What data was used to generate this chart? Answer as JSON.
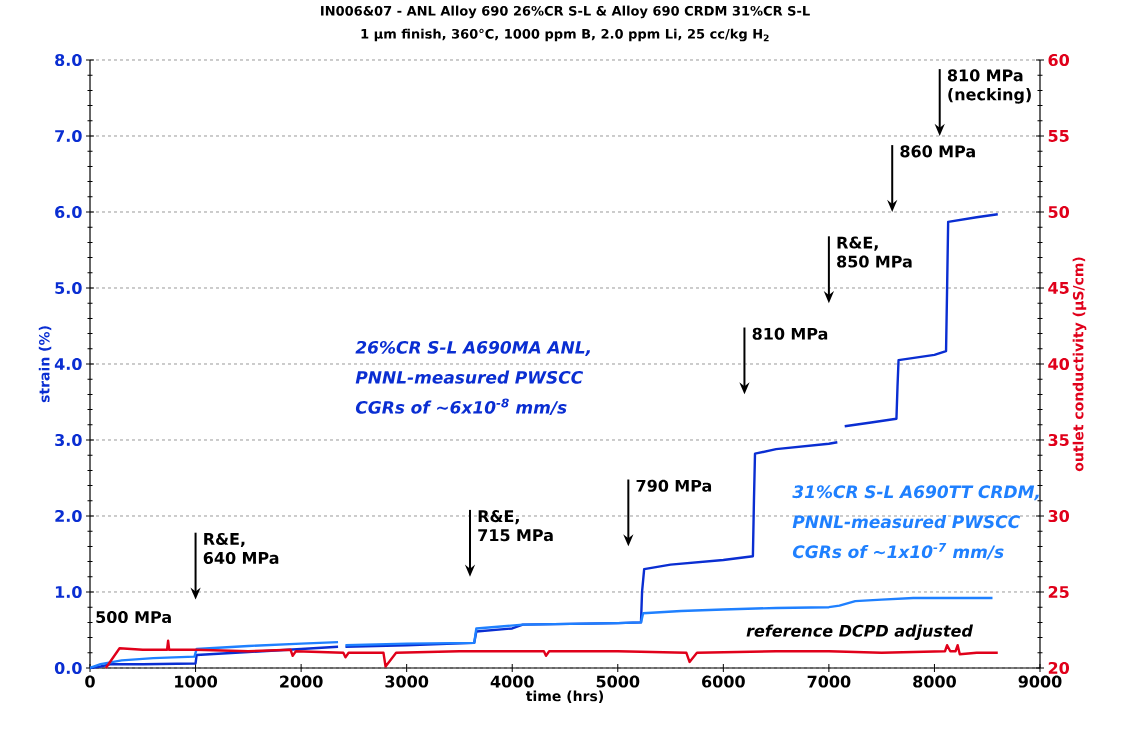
{
  "chart_data": {
    "type": "line",
    "title": "IN006&07 - ANL Alloy 690 26%CR S-L & Alloy 690 CRDM 31%CR S-L",
    "subtitle": "1 µm finish, 360°C, 1000 ppm B, 2.0 ppm Li, 25 cc/kg H$_{2}$",
    "xlabel": "time (hrs)",
    "ylabel": "strain (%)",
    "y2label": "outlet conductivity (µS/cm)",
    "xlim": [
      0,
      9000
    ],
    "xticks": [
      0,
      1000,
      2000,
      3000,
      4000,
      5000,
      6000,
      7000,
      8000,
      9000
    ],
    "ylim": [
      0,
      8
    ],
    "yticks": [
      {
        "value": 0,
        "label": "0.0"
      },
      {
        "value": 1,
        "label": "1.0"
      },
      {
        "value": 2,
        "label": "2.0"
      },
      {
        "value": 3,
        "label": "3.0"
      },
      {
        "value": 4,
        "label": "4.0"
      },
      {
        "value": 5,
        "label": "5.0"
      },
      {
        "value": 6,
        "label": "6.0"
      },
      {
        "value": 7,
        "label": "7.0"
      },
      {
        "value": 8,
        "label": "8.0"
      }
    ],
    "y2lim": [
      20,
      60
    ],
    "y2ticks": [
      20,
      25,
      30,
      35,
      40,
      45,
      50,
      55,
      60
    ],
    "grid": "y",
    "series": [
      {
        "name": "26%CR S-L A690MA ANL, PNNL-measured PWSCC CGRs of ~6x10$^{-8}$ mm/s",
        "color": "#0a2ed2",
        "x": [
          0,
          100,
          200,
          500,
          990,
          1000,
          1010,
          1500,
          2000,
          2350,
          2380,
          2420,
          3000,
          3640,
          3660,
          4000,
          4100,
          5000,
          5220,
          5230,
          5250,
          5500,
          6000,
          6280,
          6290,
          6300,
          6500,
          7000,
          7080,
          7110,
          7150,
          7400,
          7640,
          7650,
          7660,
          8000,
          8110,
          8120,
          8130,
          8400,
          8600
        ],
        "values": [
          0,
          0.02,
          0.05,
          0.05,
          0.06,
          0.06,
          0.17,
          0.21,
          0.25,
          0.28,
          null,
          0.28,
          0.3,
          0.33,
          0.48,
          0.52,
          0.57,
          0.59,
          0.6,
          1.0,
          1.3,
          1.36,
          1.42,
          1.47,
          2.2,
          2.82,
          2.88,
          2.95,
          2.97,
          null,
          3.18,
          3.23,
          3.28,
          3.7,
          4.05,
          4.12,
          4.17,
          5.0,
          5.87,
          5.93,
          5.97
        ]
      },
      {
        "name": "31%CR S-L A690TT CRDM, PNNL-measured PWSCC CGRs of ~1x10$^{-7}$ mm/s",
        "color": "#1f80ff",
        "x": [
          0,
          100,
          300,
          600,
          990,
          1010,
          1500,
          2000,
          2350,
          2380,
          2420,
          3000,
          3640,
          3660,
          4100,
          5000,
          5220,
          5240,
          5600,
          6000,
          6500,
          7000,
          7100,
          7250,
          7500,
          7800,
          8200,
          8550
        ],
        "values": [
          0,
          0.05,
          0.1,
          0.13,
          0.15,
          0.25,
          0.29,
          0.32,
          0.34,
          null,
          0.3,
          0.32,
          0.33,
          0.52,
          0.57,
          0.59,
          0.6,
          0.72,
          0.75,
          0.77,
          0.79,
          0.8,
          0.82,
          0.88,
          0.9,
          0.92,
          0.92,
          0.92
        ]
      },
      {
        "color": "#e0001a",
        "axis": "y2",
        "x": [
          150,
          280,
          500,
          730,
          740,
          750,
          1000,
          1500,
          1900,
          1920,
          1950,
          2400,
          2420,
          2450,
          2780,
          2800,
          2900,
          3500,
          4300,
          4320,
          4350,
          5000,
          5650,
          5680,
          5750,
          6500,
          7000,
          7500,
          8100,
          8120,
          8150,
          8200,
          8220,
          8240,
          8400,
          8600
        ],
        "values": [
          20.0,
          21.3,
          21.2,
          21.2,
          21.8,
          21.2,
          21.2,
          21.1,
          21.2,
          20.8,
          21.1,
          21.0,
          20.7,
          21.0,
          21.0,
          20.1,
          21.0,
          21.1,
          21.1,
          20.8,
          21.1,
          21.1,
          21.0,
          20.4,
          21.0,
          21.1,
          21.1,
          21.0,
          21.1,
          21.5,
          21.1,
          21.1,
          21.5,
          20.9,
          21.0,
          21.0
        ]
      }
    ],
    "annotations": [
      "500 MPa",
      "reference DCPD adjusted",
      "R&E, 640 MPa",
      "R&E, 715 MPa",
      "790 MPa",
      "810 MPa",
      "R&E, 850 MPa",
      "860 MPa",
      "810 MPa (necking)"
    ]
  }
}
